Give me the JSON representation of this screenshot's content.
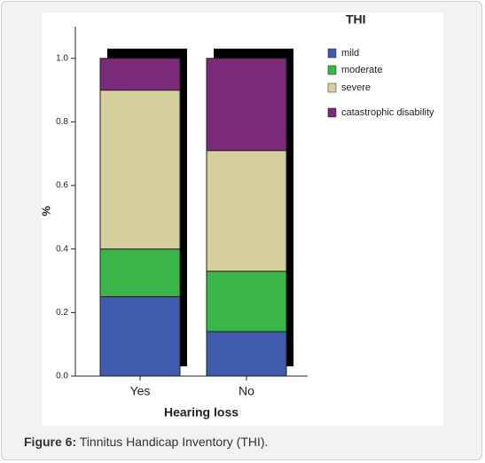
{
  "chart_data": {
    "type": "stacked_bar",
    "legend_title": "THI",
    "x_label": "Hearing loss",
    "y_label": "%",
    "categories": [
      "Yes",
      "No"
    ],
    "series": [
      {
        "name": "mild",
        "color": "#3f5bab",
        "values": [
          0.25,
          0.14
        ]
      },
      {
        "name": "moderate",
        "color": "#3ab54a",
        "values": [
          0.15,
          0.19
        ]
      },
      {
        "name": "severe",
        "color": "#d6d19c",
        "values": [
          0.5,
          0.38
        ]
      },
      {
        "name": "catastrophic disability",
        "color": "#7b2a7a",
        "values": [
          0.1,
          0.29
        ]
      }
    ],
    "ylim": [
      0,
      1.1
    ],
    "yticks": [
      {
        "value": 0,
        "label": "0.0"
      },
      0.2,
      0.4,
      0.6,
      0.8,
      {
        "value": 1,
        "label": "1.0"
      }
    ]
  },
  "caption": {
    "label": "Figure 6:",
    "text": "Tinnitus Handicap Inventory (THI)."
  }
}
